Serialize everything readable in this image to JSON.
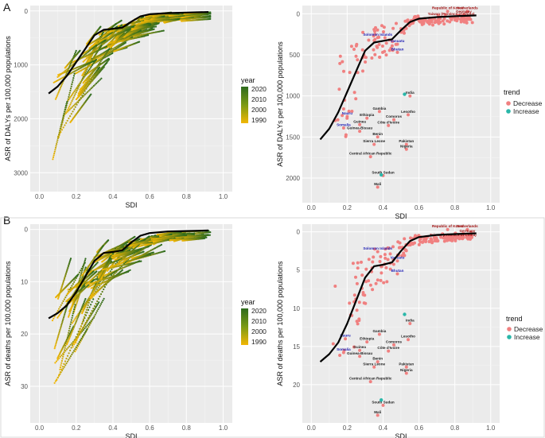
{
  "figure": {
    "panel_a": "A",
    "panel_b": "B",
    "year_legend": {
      "title": "year",
      "labels": [
        "2020",
        "2010",
        "2000",
        "1990"
      ]
    },
    "trend_legend": {
      "title": "trend",
      "labels": [
        "Decrease",
        "Increase"
      ]
    },
    "colors": {
      "decrease": "#f08080",
      "increase": "#2ab7a9",
      "year_high": "#2e6b1e",
      "year_low": "#f2b705",
      "curve": "#000000",
      "label_dark": "#222222",
      "label_red": "#a01010",
      "label_blue": "#2323b4"
    }
  },
  "chart_data": [
    {
      "id": "A-left",
      "type": "scatter",
      "xlabel": "SDI",
      "ylabel": "ASR of DALYs per 100,000 populations",
      "xlim": [
        -0.05,
        1.05
      ],
      "ylim": [
        3350,
        -100
      ],
      "y_reversed": true,
      "xticks": [
        "0.0",
        "0.2",
        "0.4",
        "0.6",
        "0.8",
        "1.0"
      ],
      "yticks": [
        "0",
        "1000",
        "2000",
        "3000"
      ],
      "grid": true,
      "series_note": "country trajectories 1990-2020 colored by year",
      "expected_curve": [
        [
          0.05,
          1530
        ],
        [
          0.1,
          1400
        ],
        [
          0.15,
          1200
        ],
        [
          0.2,
          950
        ],
        [
          0.25,
          700
        ],
        [
          0.3,
          450
        ],
        [
          0.35,
          350
        ],
        [
          0.4,
          330
        ],
        [
          0.45,
          310
        ],
        [
          0.5,
          200
        ],
        [
          0.55,
          100
        ],
        [
          0.6,
          60
        ],
        [
          0.7,
          40
        ],
        [
          0.8,
          30
        ],
        [
          0.92,
          20
        ]
      ]
    },
    {
      "id": "A-right",
      "type": "scatter",
      "xlabel": "SDI",
      "ylabel": "ASR of DALYs per 100,000 populations",
      "xlim": [
        -0.05,
        1.05
      ],
      "ylim": [
        2300,
        -100
      ],
      "y_reversed": true,
      "xticks": [
        "0.0",
        "0.2",
        "0.4",
        "0.6",
        "0.8",
        "1.0"
      ],
      "yticks": [
        "0",
        "500",
        "1000",
        "1500",
        "2000"
      ],
      "grid": true,
      "expected_curve": [
        [
          0.05,
          1530
        ],
        [
          0.1,
          1400
        ],
        [
          0.15,
          1200
        ],
        [
          0.2,
          950
        ],
        [
          0.25,
          700
        ],
        [
          0.3,
          450
        ],
        [
          0.35,
          350
        ],
        [
          0.4,
          330
        ],
        [
          0.45,
          310
        ],
        [
          0.5,
          200
        ],
        [
          0.55,
          100
        ],
        [
          0.6,
          60
        ],
        [
          0.7,
          40
        ],
        [
          0.8,
          30
        ],
        [
          0.92,
          20
        ]
      ],
      "labels": [
        {
          "name": "Republic of Korea",
          "x": 0.76,
          "y": -30,
          "style": "red"
        },
        {
          "name": "Netherlands",
          "x": 0.87,
          "y": -30,
          "style": "red"
        },
        {
          "name": "Germany",
          "x": 0.85,
          "y": 10,
          "style": "red"
        },
        {
          "name": "Taiwan (Province of China)",
          "x": 0.78,
          "y": 40,
          "style": "red"
        },
        {
          "name": "Solomon Islands",
          "x": 0.37,
          "y": 290,
          "style": "blue"
        },
        {
          "name": "Vanuatu",
          "x": 0.48,
          "y": 370,
          "style": "blue"
        },
        {
          "name": "Bhutan",
          "x": 0.48,
          "y": 470,
          "style": "blue"
        },
        {
          "name": "Nauru",
          "x": 0.2,
          "y": 1250,
          "style": "blue"
        },
        {
          "name": "Somalia",
          "x": 0.18,
          "y": 1390,
          "style": "blue"
        },
        {
          "name": "India",
          "x": 0.55,
          "y": 1000,
          "style": "dark"
        },
        {
          "name": "Gambia",
          "x": 0.38,
          "y": 1190,
          "style": "dark"
        },
        {
          "name": "Ethiopia",
          "x": 0.31,
          "y": 1270,
          "style": "dark"
        },
        {
          "name": "Lesotho",
          "x": 0.54,
          "y": 1230,
          "style": "dark"
        },
        {
          "name": "Comoros",
          "x": 0.46,
          "y": 1290,
          "style": "dark"
        },
        {
          "name": "Guinea",
          "x": 0.27,
          "y": 1350,
          "style": "dark"
        },
        {
          "name": "Côte d'Ivoire",
          "x": 0.43,
          "y": 1360,
          "style": "dark"
        },
        {
          "name": "Guinea-Bissau",
          "x": 0.27,
          "y": 1430,
          "style": "dark"
        },
        {
          "name": "Benin",
          "x": 0.37,
          "y": 1500,
          "style": "dark"
        },
        {
          "name": "Sierra Leone",
          "x": 0.35,
          "y": 1590,
          "style": "dark"
        },
        {
          "name": "Pakistan",
          "x": 0.53,
          "y": 1590,
          "style": "dark"
        },
        {
          "name": "Nigeria",
          "x": 0.53,
          "y": 1650,
          "style": "dark"
        },
        {
          "name": "Central African Republic",
          "x": 0.33,
          "y": 1740,
          "style": "dark"
        },
        {
          "name": "South Sudan",
          "x": 0.4,
          "y": 1970,
          "style": "dark"
        },
        {
          "name": "Mali",
          "x": 0.37,
          "y": 2110,
          "style": "dark"
        }
      ],
      "highlight_points": [
        {
          "x": 0.39,
          "y": 1960,
          "trend": "Increase"
        },
        {
          "x": 0.52,
          "y": 980,
          "trend": "Increase"
        }
      ]
    },
    {
      "id": "B-left",
      "type": "scatter",
      "xlabel": "SDI",
      "ylabel": "ASR of deaths per 100,000 populations",
      "xlim": [
        -0.05,
        1.05
      ],
      "ylim": [
        37,
        -1
      ],
      "y_reversed": true,
      "xticks": [
        "0.0",
        "0.2",
        "0.4",
        "0.6",
        "0.8",
        "1.0"
      ],
      "yticks": [
        "0",
        "10",
        "20",
        "30"
      ],
      "grid": true,
      "series_note": "country trajectories 1990-2020 colored by year",
      "expected_curve": [
        [
          0.05,
          17
        ],
        [
          0.1,
          16
        ],
        [
          0.15,
          14.5
        ],
        [
          0.2,
          12
        ],
        [
          0.25,
          9
        ],
        [
          0.3,
          6
        ],
        [
          0.35,
          4.5
        ],
        [
          0.4,
          4.3
        ],
        [
          0.45,
          4
        ],
        [
          0.5,
          2.5
        ],
        [
          0.55,
          1.2
        ],
        [
          0.6,
          0.7
        ],
        [
          0.7,
          0.4
        ],
        [
          0.8,
          0.3
        ],
        [
          0.92,
          0.2
        ]
      ]
    },
    {
      "id": "B-right",
      "type": "scatter",
      "xlabel": "SDI",
      "ylabel": "ASR of deaths per 100,000 populations",
      "xlim": [
        -0.05,
        1.05
      ],
      "ylim": [
        25,
        -1
      ],
      "y_reversed": true,
      "xticks": [
        "0.0",
        "0.2",
        "0.4",
        "0.6",
        "0.8",
        "1.0"
      ],
      "yticks": [
        "0",
        "5",
        "10",
        "15",
        "20"
      ],
      "grid": true,
      "expected_curve": [
        [
          0.05,
          17
        ],
        [
          0.1,
          16
        ],
        [
          0.15,
          14.5
        ],
        [
          0.2,
          12
        ],
        [
          0.25,
          9
        ],
        [
          0.3,
          6
        ],
        [
          0.35,
          4.5
        ],
        [
          0.4,
          4.3
        ],
        [
          0.45,
          4
        ],
        [
          0.5,
          2.5
        ],
        [
          0.55,
          1.2
        ],
        [
          0.6,
          0.7
        ],
        [
          0.7,
          0.4
        ],
        [
          0.8,
          0.3
        ],
        [
          0.92,
          0.2
        ]
      ],
      "labels": [
        {
          "name": "Republic of Korea",
          "x": 0.76,
          "y": -0.3,
          "style": "red"
        },
        {
          "name": "Netherlands",
          "x": 0.87,
          "y": -0.3,
          "style": "red"
        },
        {
          "name": "Germany",
          "x": 0.87,
          "y": 0.3,
          "style": "red"
        },
        {
          "name": "Taiwan (Province of China)",
          "x": 0.79,
          "y": 0.8,
          "style": "red"
        },
        {
          "name": "Solomon Islands",
          "x": 0.37,
          "y": 2.6,
          "style": "blue"
        },
        {
          "name": "Vanuatu",
          "x": 0.48,
          "y": 3.8,
          "style": "blue"
        },
        {
          "name": "Bhutan",
          "x": 0.48,
          "y": 5.5,
          "style": "blue"
        },
        {
          "name": "Nauru",
          "x": 0.19,
          "y": 14.0,
          "style": "blue"
        },
        {
          "name": "Somalia",
          "x": 0.18,
          "y": 15.8,
          "style": "blue"
        },
        {
          "name": "India",
          "x": 0.55,
          "y": 12.0,
          "style": "dark"
        },
        {
          "name": "Gambia",
          "x": 0.38,
          "y": 13.4,
          "style": "dark"
        },
        {
          "name": "Ethiopia",
          "x": 0.31,
          "y": 14.4,
          "style": "dark"
        },
        {
          "name": "Lesotho",
          "x": 0.54,
          "y": 14.1,
          "style": "dark"
        },
        {
          "name": "Comoros",
          "x": 0.46,
          "y": 14.8,
          "style": "dark"
        },
        {
          "name": "Guinea",
          "x": 0.27,
          "y": 15.5,
          "style": "dark"
        },
        {
          "name": "Côte d'Ivoire",
          "x": 0.43,
          "y": 15.6,
          "style": "dark"
        },
        {
          "name": "Guinea-Bissau",
          "x": 0.27,
          "y": 16.3,
          "style": "dark"
        },
        {
          "name": "Benin",
          "x": 0.37,
          "y": 17.0,
          "style": "dark"
        },
        {
          "name": "Sierra Leone",
          "x": 0.35,
          "y": 17.7,
          "style": "dark"
        },
        {
          "name": "Pakistan",
          "x": 0.53,
          "y": 17.7,
          "style": "dark"
        },
        {
          "name": "Nigeria",
          "x": 0.53,
          "y": 18.5,
          "style": "dark"
        },
        {
          "name": "Central African Republic",
          "x": 0.33,
          "y": 19.6,
          "style": "dark"
        },
        {
          "name": "South Sudan",
          "x": 0.4,
          "y": 22.7,
          "style": "dark"
        },
        {
          "name": "Mali",
          "x": 0.37,
          "y": 24.0,
          "style": "dark"
        }
      ],
      "highlight_points": [
        {
          "x": 0.39,
          "y": 22.0,
          "trend": "Increase"
        },
        {
          "x": 0.52,
          "y": 10.8,
          "trend": "Increase"
        }
      ]
    }
  ]
}
